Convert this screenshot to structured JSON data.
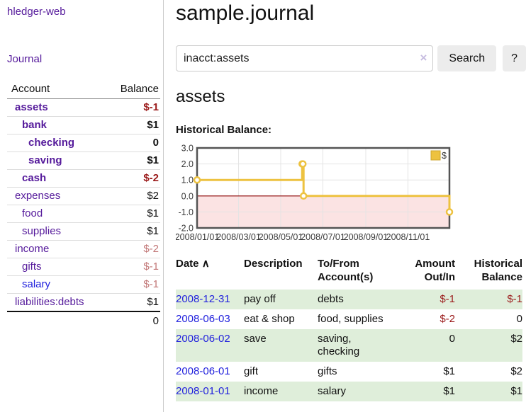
{
  "app": {
    "title": "hledger-web"
  },
  "colors": {
    "link_purple": "#551a9b",
    "link_blue": "#2222dd",
    "negative_strong": "#9b1b1b",
    "negative_muted": "#c27878",
    "zebra_green": "#dfeeda",
    "chart_line_gold": "#edc240",
    "chart_negative_fill": "#fbe3e3",
    "chart_zero_line": "#8b0000"
  },
  "sidebar": {
    "journal_link": "Journal",
    "accounts_table": {
      "headers": {
        "account": "Account",
        "balance": "Balance"
      },
      "rows": [
        {
          "name": "assets",
          "balance": "$-1",
          "level": 1,
          "bold": true,
          "balance_style": "neg-strong"
        },
        {
          "name": "bank",
          "balance": "$1",
          "level": 2,
          "bold": true,
          "balance_style": ""
        },
        {
          "name": "checking",
          "balance": "0",
          "level": 3,
          "bold": true,
          "balance_style": ""
        },
        {
          "name": "saving",
          "balance": "$1",
          "level": 3,
          "bold": true,
          "balance_style": ""
        },
        {
          "name": "cash",
          "balance": "$-2",
          "level": 2,
          "bold": true,
          "balance_style": "neg-strong"
        },
        {
          "name": "expenses",
          "balance": "$2",
          "level": 1,
          "bold": false,
          "balance_style": ""
        },
        {
          "name": "food",
          "balance": "$1",
          "level": 2,
          "bold": false,
          "balance_style": ""
        },
        {
          "name": "supplies",
          "balance": "$1",
          "level": 2,
          "bold": false,
          "balance_style": ""
        },
        {
          "name": "income",
          "balance": "$-2",
          "level": 1,
          "bold": false,
          "balance_style": "neg-muted"
        },
        {
          "name": "gifts",
          "balance": "$-1",
          "level": 2,
          "bold": false,
          "balance_style": "neg-muted"
        },
        {
          "name": "salary",
          "balance": "$-1",
          "level": 2,
          "bold": false,
          "balance_style": "neg-muted",
          "link_color": "blue"
        },
        {
          "name": "liabilities:debts",
          "balance": "$1",
          "level": 1,
          "bold": false,
          "balance_style": ""
        }
      ],
      "total": "0"
    }
  },
  "header": {
    "title": "sample.journal"
  },
  "search": {
    "value": "inacct:assets",
    "clear_icon": "×",
    "search_label": "Search",
    "help_label": "?"
  },
  "account_page": {
    "heading": "assets",
    "chart_label": "Historical Balance:"
  },
  "chart_data": {
    "type": "line",
    "title": "Historical Balance",
    "step": true,
    "series": [
      {
        "name": "$",
        "color": "#edc240",
        "points": [
          [
            "2008-01-01",
            1
          ],
          [
            "2008-06-01",
            2
          ],
          [
            "2008-06-02",
            2
          ],
          [
            "2008-06-03",
            0
          ],
          [
            "2008-12-31",
            -1
          ]
        ]
      }
    ],
    "xlim": [
      "2008-01-01",
      "2008-12-31"
    ],
    "ylim": [
      -2,
      3
    ],
    "yticks": [
      "3.0",
      "2.0",
      "1.0",
      "0.0",
      "-1.0",
      "-2.0"
    ],
    "ytick_values": [
      3,
      2,
      1,
      0,
      -1,
      -2
    ],
    "xticks": [
      "2008/01/01",
      "2008/03/01",
      "2008/05/01",
      "2008/07/01",
      "2008/09/01",
      "2008/11/01"
    ],
    "legend": {
      "position": "top-right",
      "label": "$"
    },
    "grid": true
  },
  "register": {
    "headers": {
      "date": "Date",
      "sort_icon": "∧",
      "description": "Description",
      "accounts": "To/From Account(s)",
      "amount": "Amount Out/In",
      "balance": "Historical Balance"
    },
    "rows": [
      {
        "date": "2008-12-31",
        "description": "pay off",
        "accounts": "debts",
        "amount": "$-1",
        "balance": "$-1",
        "amount_neg": true,
        "balance_neg": true
      },
      {
        "date": "2008-06-03",
        "description": "eat & shop",
        "accounts": "food, supplies",
        "amount": "$-2",
        "balance": "0",
        "amount_neg": true,
        "balance_neg": false
      },
      {
        "date": "2008-06-02",
        "description": "save",
        "accounts": "saving, checking",
        "amount": "0",
        "balance": "$2",
        "amount_neg": false,
        "balance_neg": false
      },
      {
        "date": "2008-06-01",
        "description": "gift",
        "accounts": "gifts",
        "amount": "$1",
        "balance": "$2",
        "amount_neg": false,
        "balance_neg": false
      },
      {
        "date": "2008-01-01",
        "description": "income",
        "accounts": "salary",
        "amount": "$1",
        "balance": "$1",
        "amount_neg": false,
        "balance_neg": false
      }
    ]
  }
}
